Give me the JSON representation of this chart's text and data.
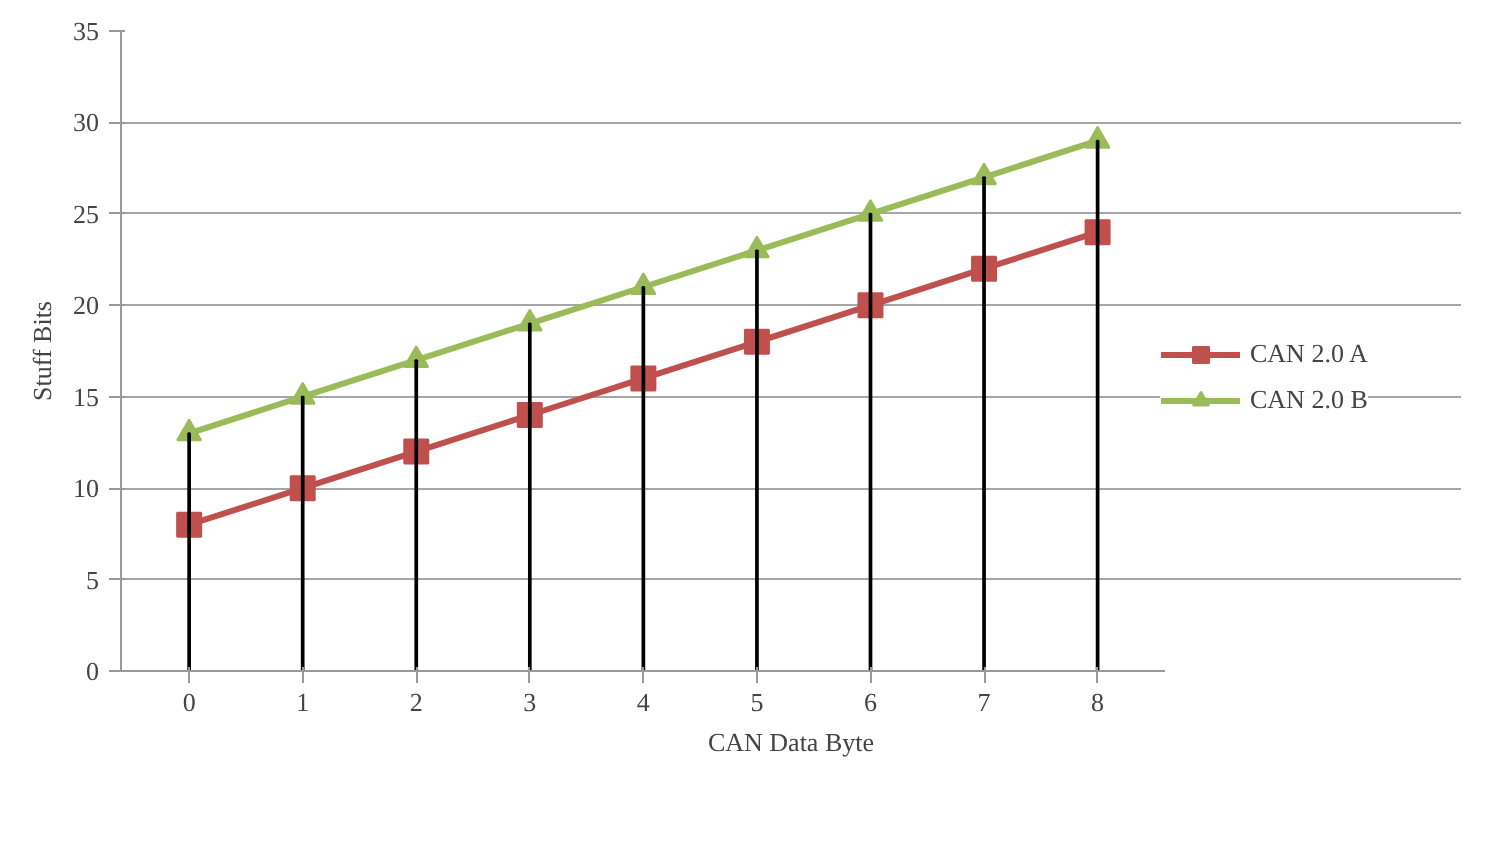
{
  "chart_data": {
    "type": "line",
    "xlabel": "CAN Data Byte",
    "ylabel": "Stuff Bits",
    "categories": [
      "0",
      "1",
      "2",
      "3",
      "4",
      "5",
      "6",
      "7",
      "8"
    ],
    "series": [
      {
        "name": "CAN 2.0 A",
        "color": "#c0504d",
        "marker": "square",
        "values": [
          8,
          10,
          12,
          14,
          16,
          18,
          20,
          22,
          24
        ]
      },
      {
        "name": "CAN 2.0 B",
        "color": "#9bbb59",
        "marker": "triangle",
        "values": [
          13,
          15,
          17,
          19,
          21,
          23,
          25,
          27,
          29
        ]
      },
      {
        "type": "bar",
        "color": "#000000",
        "values": [
          13,
          15,
          17,
          19,
          21,
          23,
          25,
          27,
          29
        ]
      }
    ],
    "ylim": [
      0,
      35
    ],
    "yticks": [
      0,
      5,
      10,
      15,
      20,
      25,
      30,
      35
    ],
    "grid": "y",
    "legend": "right"
  }
}
